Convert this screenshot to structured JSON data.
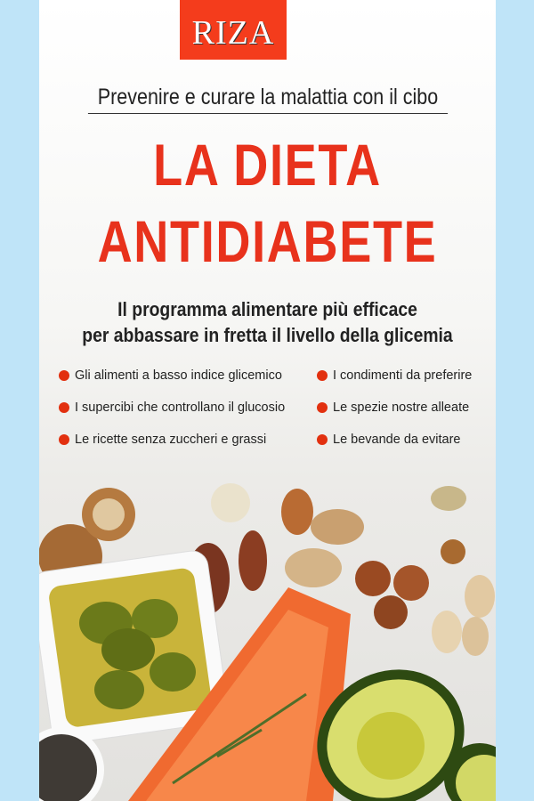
{
  "publisher": {
    "logo": "RIZA",
    "color": "#f43c1c"
  },
  "cover": {
    "kicker": "Prevenire e curare la malattia con il cibo",
    "title_line1": "LA DIETA",
    "title_line2": "ANTIDIABETE",
    "subtitle_line1": "Il programma alimentare più efficace",
    "subtitle_line2": "per abbassare in fretta il livello della glicemia",
    "bullets": [
      "Gli alimenti a basso indice glicemico",
      "I condimenti da preferire",
      "I supercibi che controllano il glucosio",
      "Le spezie nostre alleate",
      "Le ricette senza zuccheri e grassi",
      "Le bevande da evitare"
    ],
    "accent": "#e8321c",
    "image": "food-photo: walnuts, almonds, pecans, hazelnuts, olive oil with olives, salmon, avocado, chia seeds"
  }
}
